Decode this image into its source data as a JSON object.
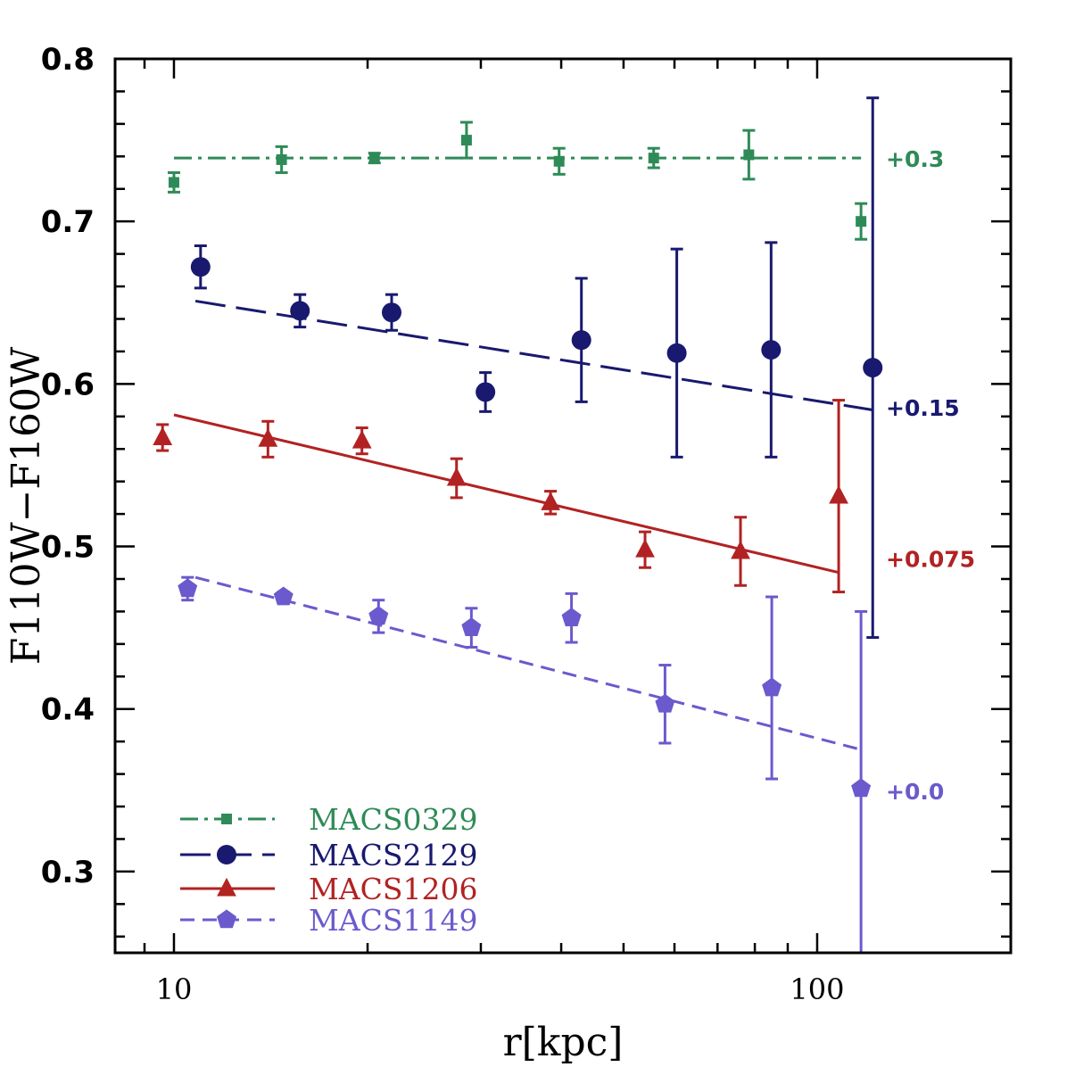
{
  "chart_data": {
    "type": "scatter",
    "title": "",
    "xlabel": "r[kpc]",
    "ylabel": "F110W−F160W",
    "x_scale": "log",
    "xlim": [
      8.1,
      200
    ],
    "ylim": [
      0.25,
      0.8
    ],
    "x_ticks": [
      10,
      100
    ],
    "x_tick_labels": [
      "10",
      "100"
    ],
    "y_ticks": [
      0.3,
      0.4,
      0.5,
      0.6,
      0.7,
      0.8
    ],
    "y_tick_labels": [
      "0.3",
      "0.4",
      "0.5",
      "0.6",
      "0.7",
      "0.8"
    ],
    "grid": false,
    "legend_position": "bottom-left",
    "series": [
      {
        "name": "MACS0329",
        "color": "#2e8b57",
        "marker": "square",
        "line_style": "dash-dot",
        "offset_label": "+0.3",
        "x": [
          10.0,
          14.7,
          20.5,
          28.5,
          39.7,
          55.7,
          78.3,
          117
        ],
        "y": [
          0.724,
          0.738,
          0.739,
          0.75,
          0.737,
          0.739,
          0.741,
          0.7
        ],
        "err": [
          0.006,
          0.008,
          0.003,
          0.011,
          0.008,
          0.006,
          0.015,
          0.011
        ],
        "fit_x": [
          10.0,
          117
        ],
        "fit_y": [
          0.739,
          0.739
        ]
      },
      {
        "name": "MACS2129",
        "color": "#191970",
        "marker": "circle",
        "line_style": "long-dash",
        "offset_label": "+0.15",
        "x": [
          11.0,
          15.7,
          21.8,
          30.5,
          43.0,
          60.5,
          84.8,
          122
        ],
        "y": [
          0.672,
          0.645,
          0.644,
          0.595,
          0.627,
          0.619,
          0.621,
          0.61
        ],
        "err": [
          0.013,
          0.01,
          0.011,
          0.012,
          0.038,
          0.064,
          0.066,
          0.166
        ],
        "fit_x": [
          10.8,
          122
        ],
        "fit_y": [
          0.651,
          0.584
        ]
      },
      {
        "name": "MACS1206",
        "color": "#b22222",
        "marker": "triangle",
        "line_style": "solid",
        "offset_label": "+0.075",
        "x": [
          9.6,
          14.0,
          19.6,
          27.5,
          38.5,
          54.0,
          76.0,
          108
        ],
        "y": [
          0.567,
          0.566,
          0.565,
          0.542,
          0.527,
          0.498,
          0.497,
          0.531
        ],
        "err": [
          0.008,
          0.011,
          0.008,
          0.012,
          0.007,
          0.011,
          0.021,
          0.059
        ],
        "fit_x": [
          10.0,
          108
        ],
        "fit_y": [
          0.581,
          0.484
        ]
      },
      {
        "name": "MACS1149",
        "color": "#6a5acd",
        "marker": "pentagon",
        "line_style": "short-dash",
        "offset_label": "+0.0",
        "x": [
          10.5,
          14.8,
          20.8,
          29.0,
          41.5,
          58.0,
          85.0,
          117
        ],
        "y": [
          0.474,
          0.469,
          0.457,
          0.45,
          0.456,
          0.403,
          0.413,
          0.351
        ],
        "err": [
          0.007,
          0.003,
          0.01,
          0.012,
          0.015,
          0.024,
          0.056,
          0.109
        ],
        "fit_x": [
          10.8,
          117
        ],
        "fit_y": [
          0.481,
          0.375
        ]
      }
    ]
  }
}
